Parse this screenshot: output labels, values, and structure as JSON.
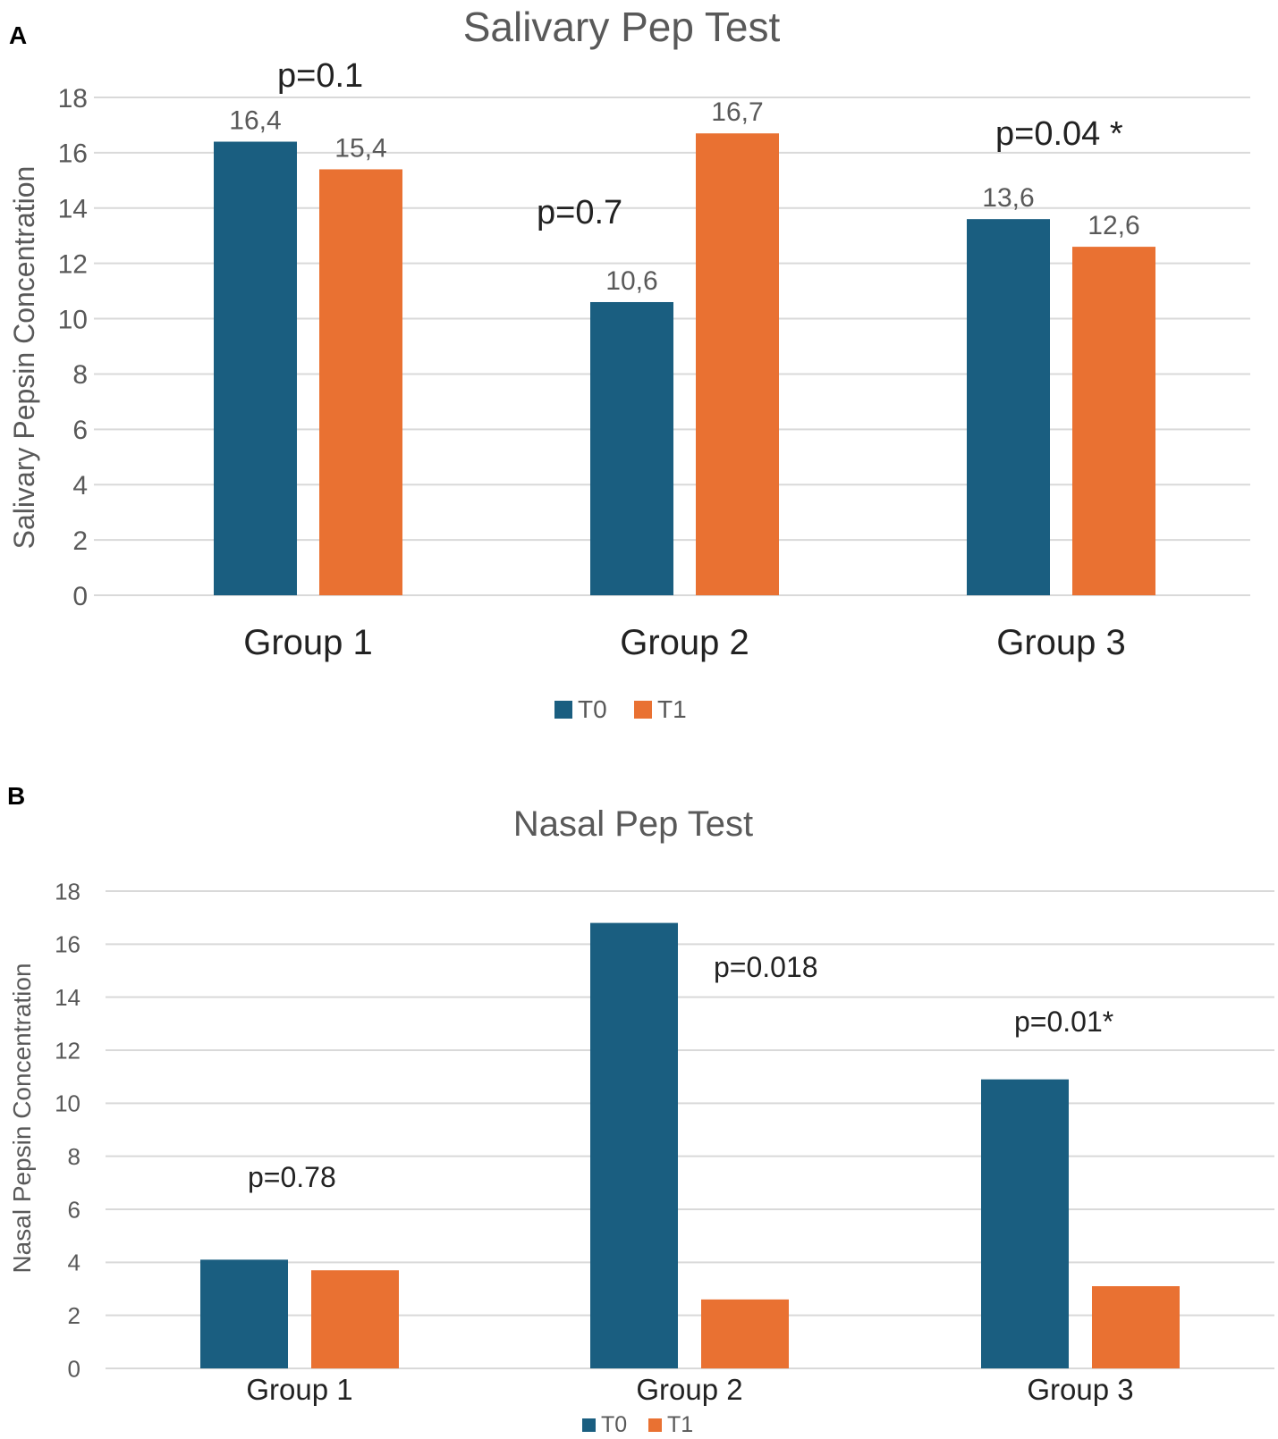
{
  "colors": {
    "t0": "#1a5e80",
    "t1": "#e97132"
  },
  "chart_data": [
    {
      "panel": "A",
      "type": "bar",
      "title": "Salivary Pep Test",
      "ylabel": "Salivary  Pepsin Concentration",
      "xlabel": "",
      "ylim": [
        0,
        18
      ],
      "yticks": [
        "0",
        "2",
        "4",
        "6",
        "8",
        "10",
        "12",
        "14",
        "16",
        "18"
      ],
      "categories": [
        "Group 1",
        "Group 2",
        "Group 3"
      ],
      "series": [
        {
          "name": "T0",
          "values": [
            16.4,
            10.6,
            13.6
          ],
          "labels": [
            "16,4",
            "10,6",
            "13,6"
          ]
        },
        {
          "name": "T1",
          "values": [
            15.4,
            16.7,
            12.6
          ],
          "labels": [
            "15,4",
            "16,7",
            "12,6"
          ]
        }
      ],
      "annotations": [
        "p=0.1",
        "p=0.7",
        "p=0.04 *"
      ],
      "legend": [
        "T0",
        "T1"
      ],
      "legend_position": "bottom"
    },
    {
      "panel": "B",
      "type": "bar",
      "title": "Nasal Pep Test",
      "ylabel": "Nasal Pepsin Concentration",
      "xlabel": "",
      "ylim": [
        0,
        18
      ],
      "yticks": [
        "0",
        "2",
        "4",
        "6",
        "8",
        "10",
        "12",
        "14",
        "16",
        "18"
      ],
      "categories": [
        "Group 1",
        "Group 2",
        "Group 3"
      ],
      "series": [
        {
          "name": "T0",
          "values": [
            4.1,
            16.8,
            10.9
          ]
        },
        {
          "name": "T1",
          "values": [
            3.7,
            2.6,
            3.1
          ]
        }
      ],
      "annotations": [
        "p=0.78",
        "p=0.018",
        "p=0.01*"
      ],
      "legend": [
        "T0",
        "T1"
      ],
      "legend_position": "bottom"
    }
  ]
}
